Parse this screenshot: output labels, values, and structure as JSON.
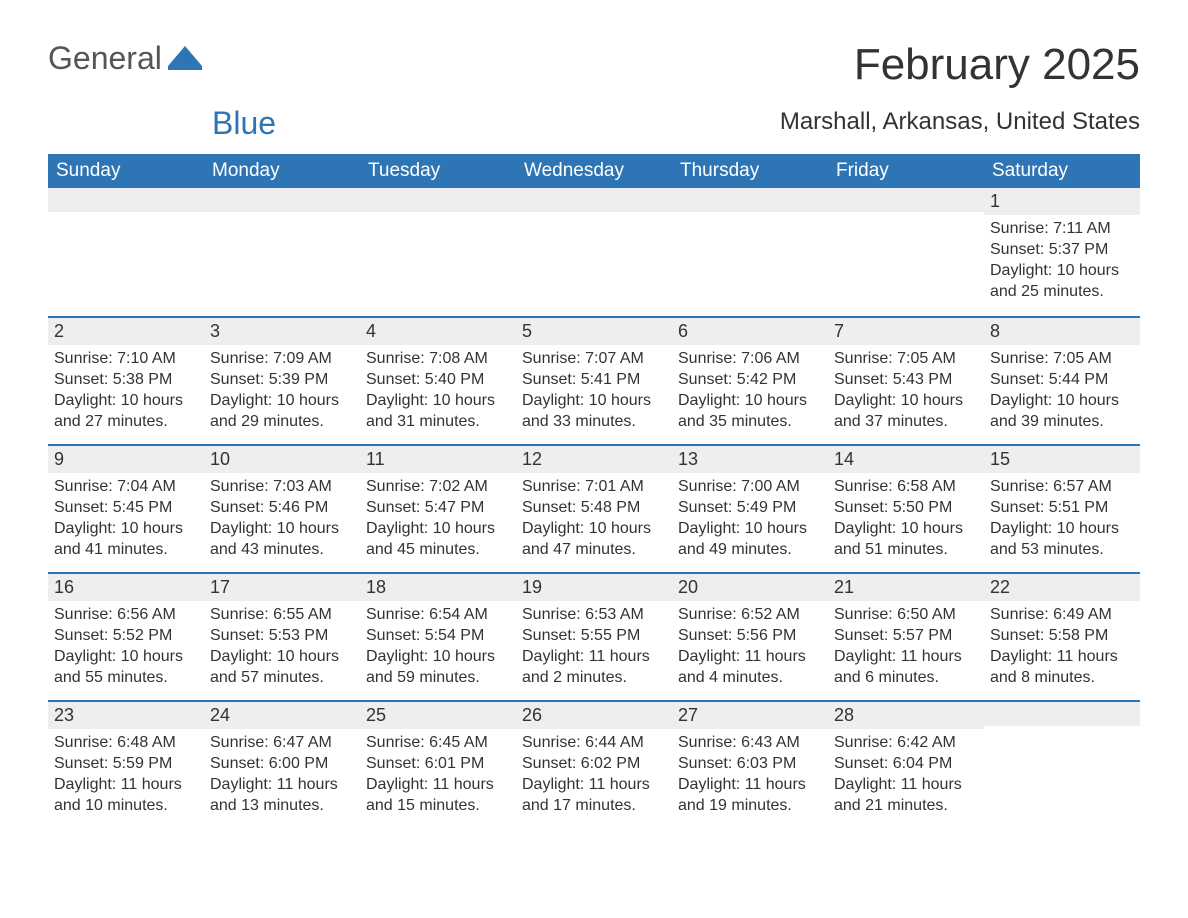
{
  "logo": {
    "word1": "General",
    "word2": "Blue",
    "icon_color": "#2e75b6"
  },
  "title": "February 2025",
  "location": "Marshall, Arkansas, United States",
  "colors": {
    "header_bg": "#2e75b6",
    "header_text": "#ffffff",
    "row_divider": "#2e75b6",
    "daynum_bg": "#eeeeee",
    "body_text": "#333333",
    "page_bg": "#ffffff"
  },
  "weekdays": [
    "Sunday",
    "Monday",
    "Tuesday",
    "Wednesday",
    "Thursday",
    "Friday",
    "Saturday"
  ],
  "weeks": [
    [
      {},
      {},
      {},
      {},
      {},
      {},
      {
        "n": "1",
        "rise": "Sunrise: 7:11 AM",
        "set": "Sunset: 5:37 PM",
        "d1": "Daylight: 10 hours",
        "d2": "and 25 minutes."
      }
    ],
    [
      {
        "n": "2",
        "rise": "Sunrise: 7:10 AM",
        "set": "Sunset: 5:38 PM",
        "d1": "Daylight: 10 hours",
        "d2": "and 27 minutes."
      },
      {
        "n": "3",
        "rise": "Sunrise: 7:09 AM",
        "set": "Sunset: 5:39 PM",
        "d1": "Daylight: 10 hours",
        "d2": "and 29 minutes."
      },
      {
        "n": "4",
        "rise": "Sunrise: 7:08 AM",
        "set": "Sunset: 5:40 PM",
        "d1": "Daylight: 10 hours",
        "d2": "and 31 minutes."
      },
      {
        "n": "5",
        "rise": "Sunrise: 7:07 AM",
        "set": "Sunset: 5:41 PM",
        "d1": "Daylight: 10 hours",
        "d2": "and 33 minutes."
      },
      {
        "n": "6",
        "rise": "Sunrise: 7:06 AM",
        "set": "Sunset: 5:42 PM",
        "d1": "Daylight: 10 hours",
        "d2": "and 35 minutes."
      },
      {
        "n": "7",
        "rise": "Sunrise: 7:05 AM",
        "set": "Sunset: 5:43 PM",
        "d1": "Daylight: 10 hours",
        "d2": "and 37 minutes."
      },
      {
        "n": "8",
        "rise": "Sunrise: 7:05 AM",
        "set": "Sunset: 5:44 PM",
        "d1": "Daylight: 10 hours",
        "d2": "and 39 minutes."
      }
    ],
    [
      {
        "n": "9",
        "rise": "Sunrise: 7:04 AM",
        "set": "Sunset: 5:45 PM",
        "d1": "Daylight: 10 hours",
        "d2": "and 41 minutes."
      },
      {
        "n": "10",
        "rise": "Sunrise: 7:03 AM",
        "set": "Sunset: 5:46 PM",
        "d1": "Daylight: 10 hours",
        "d2": "and 43 minutes."
      },
      {
        "n": "11",
        "rise": "Sunrise: 7:02 AM",
        "set": "Sunset: 5:47 PM",
        "d1": "Daylight: 10 hours",
        "d2": "and 45 minutes."
      },
      {
        "n": "12",
        "rise": "Sunrise: 7:01 AM",
        "set": "Sunset: 5:48 PM",
        "d1": "Daylight: 10 hours",
        "d2": "and 47 minutes."
      },
      {
        "n": "13",
        "rise": "Sunrise: 7:00 AM",
        "set": "Sunset: 5:49 PM",
        "d1": "Daylight: 10 hours",
        "d2": "and 49 minutes."
      },
      {
        "n": "14",
        "rise": "Sunrise: 6:58 AM",
        "set": "Sunset: 5:50 PM",
        "d1": "Daylight: 10 hours",
        "d2": "and 51 minutes."
      },
      {
        "n": "15",
        "rise": "Sunrise: 6:57 AM",
        "set": "Sunset: 5:51 PM",
        "d1": "Daylight: 10 hours",
        "d2": "and 53 minutes."
      }
    ],
    [
      {
        "n": "16",
        "rise": "Sunrise: 6:56 AM",
        "set": "Sunset: 5:52 PM",
        "d1": "Daylight: 10 hours",
        "d2": "and 55 minutes."
      },
      {
        "n": "17",
        "rise": "Sunrise: 6:55 AM",
        "set": "Sunset: 5:53 PM",
        "d1": "Daylight: 10 hours",
        "d2": "and 57 minutes."
      },
      {
        "n": "18",
        "rise": "Sunrise: 6:54 AM",
        "set": "Sunset: 5:54 PM",
        "d1": "Daylight: 10 hours",
        "d2": "and 59 minutes."
      },
      {
        "n": "19",
        "rise": "Sunrise: 6:53 AM",
        "set": "Sunset: 5:55 PM",
        "d1": "Daylight: 11 hours",
        "d2": "and 2 minutes."
      },
      {
        "n": "20",
        "rise": "Sunrise: 6:52 AM",
        "set": "Sunset: 5:56 PM",
        "d1": "Daylight: 11 hours",
        "d2": "and 4 minutes."
      },
      {
        "n": "21",
        "rise": "Sunrise: 6:50 AM",
        "set": "Sunset: 5:57 PM",
        "d1": "Daylight: 11 hours",
        "d2": "and 6 minutes."
      },
      {
        "n": "22",
        "rise": "Sunrise: 6:49 AM",
        "set": "Sunset: 5:58 PM",
        "d1": "Daylight: 11 hours",
        "d2": "and 8 minutes."
      }
    ],
    [
      {
        "n": "23",
        "rise": "Sunrise: 6:48 AM",
        "set": "Sunset: 5:59 PM",
        "d1": "Daylight: 11 hours",
        "d2": "and 10 minutes."
      },
      {
        "n": "24",
        "rise": "Sunrise: 6:47 AM",
        "set": "Sunset: 6:00 PM",
        "d1": "Daylight: 11 hours",
        "d2": "and 13 minutes."
      },
      {
        "n": "25",
        "rise": "Sunrise: 6:45 AM",
        "set": "Sunset: 6:01 PM",
        "d1": "Daylight: 11 hours",
        "d2": "and 15 minutes."
      },
      {
        "n": "26",
        "rise": "Sunrise: 6:44 AM",
        "set": "Sunset: 6:02 PM",
        "d1": "Daylight: 11 hours",
        "d2": "and 17 minutes."
      },
      {
        "n": "27",
        "rise": "Sunrise: 6:43 AM",
        "set": "Sunset: 6:03 PM",
        "d1": "Daylight: 11 hours",
        "d2": "and 19 minutes."
      },
      {
        "n": "28",
        "rise": "Sunrise: 6:42 AM",
        "set": "Sunset: 6:04 PM",
        "d1": "Daylight: 11 hours",
        "d2": "and 21 minutes."
      },
      {}
    ]
  ]
}
